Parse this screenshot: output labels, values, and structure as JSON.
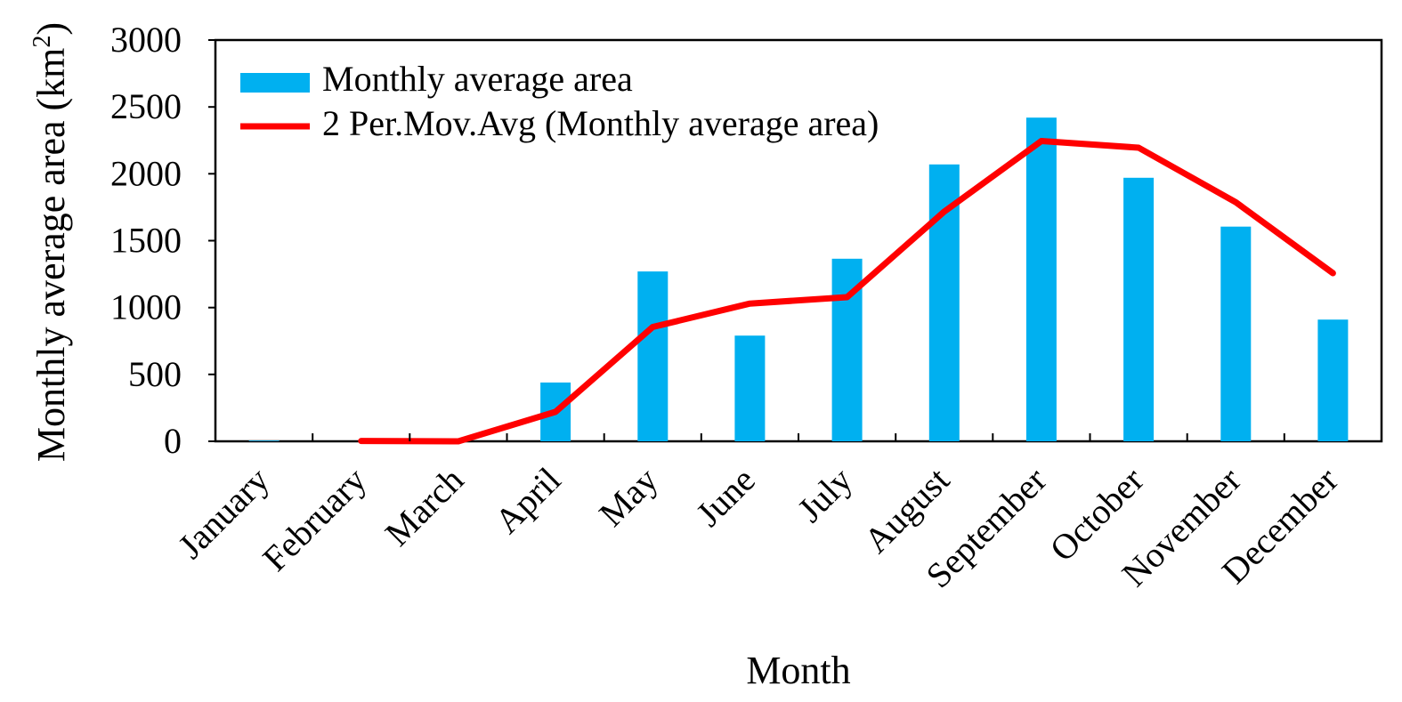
{
  "chart_data": {
    "type": "bar",
    "categories": [
      "January",
      "February",
      "March",
      "April",
      "May",
      "June",
      "July",
      "August",
      "September",
      "October",
      "November",
      "December"
    ],
    "series": [
      {
        "name": "Monthly average area",
        "type": "bar",
        "color": "#00B0F0",
        "values": [
          5,
          0,
          0,
          440,
          1270,
          790,
          1365,
          2070,
          2420,
          1970,
          1605,
          910
        ]
      },
      {
        "name": "2 Per.Mov.Avg (Monthly average area)",
        "type": "line",
        "color": "#FF0000",
        "values": [
          null,
          2.5,
          0,
          220,
          855,
          1030,
          1077.5,
          1717.5,
          2245,
          2195,
          1787.5,
          1257.5
        ]
      }
    ],
    "xlabel": "Month",
    "ylabel": "Monthly average area (km",
    "ylabel_superscript": "2",
    "ylabel_suffix": ")",
    "ylim": [
      0,
      3000
    ],
    "yticks": [
      "0",
      "500",
      "1000",
      "1500",
      "2000",
      "2500",
      "3000"
    ],
    "grid": false,
    "legend_position": "top-left"
  }
}
